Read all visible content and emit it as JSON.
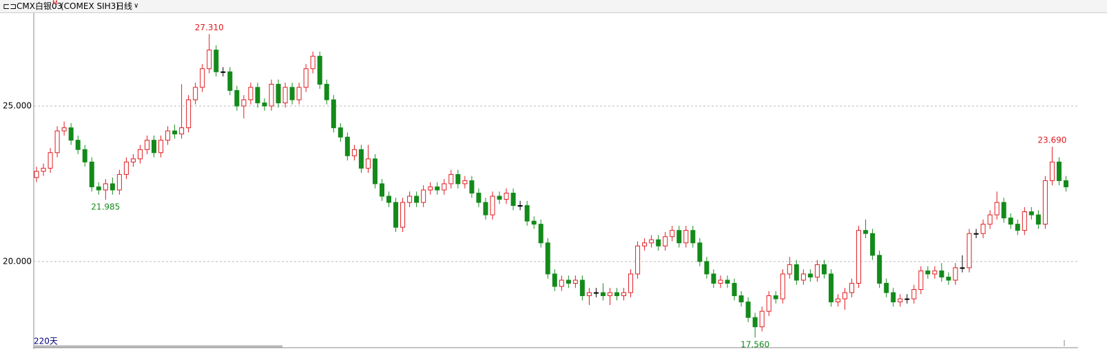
{
  "header": {
    "symbol": "CMX白银03",
    "badge": "M",
    "code": "(COMEX SIH3)",
    "period": "日线"
  },
  "chart_data": {
    "type": "candlestick",
    "window_label": "220天",
    "up_color": "#e0191e",
    "down_color": "#138a1a",
    "flat_color": "#000000",
    "ylim": [
      17.23,
      28.01
    ],
    "yticks": [
      {
        "value": 20,
        "label": "20.000"
      },
      {
        "value": 25,
        "label": "25.000"
      }
    ],
    "grid": true,
    "annotations": [
      {
        "text": "27.310",
        "value": 27.31
      },
      {
        "text": "21.985",
        "value": 21.985
      },
      {
        "text": "17.560",
        "value": 17.56
      },
      {
        "text": "23.690",
        "value": 23.69
      }
    ],
    "open": [
      22.7,
      22.9,
      23.0,
      23.5,
      24.2,
      24.3,
      23.9,
      23.6,
      23.2,
      22.4,
      22.3,
      22.5,
      22.3,
      22.8,
      23.2,
      23.3,
      23.6,
      23.9,
      23.5,
      23.9,
      24.2,
      24.1,
      24.3,
      25.2,
      25.6,
      26.2,
      26.8,
      26.1,
      26.1,
      25.5,
      25.0,
      25.2,
      25.6,
      25.1,
      25.0,
      25.7,
      25.1,
      25.6,
      25.2,
      25.6,
      26.2,
      26.6,
      25.7,
      25.2,
      24.3,
      24.0,
      23.4,
      23.6,
      23.0,
      23.3,
      22.5,
      22.1,
      21.9,
      21.1,
      21.9,
      22.1,
      21.9,
      22.3,
      22.4,
      22.3,
      22.5,
      22.8,
      22.5,
      22.6,
      22.2,
      21.9,
      21.5,
      22.1,
      22.0,
      22.2,
      21.8,
      21.8,
      21.3,
      21.2,
      20.6,
      19.6,
      19.2,
      19.4,
      19.3,
      19.4,
      18.9,
      19.0,
      19.0,
      18.9,
      19.0,
      18.9,
      19.0,
      19.6,
      20.5,
      20.6,
      20.7,
      20.5,
      20.8,
      21.0,
      20.6,
      21.0,
      20.6,
      20.0,
      19.6,
      19.3,
      19.4,
      19.3,
      18.9,
      18.7,
      18.2,
      17.9,
      18.4,
      18.9,
      18.8,
      19.6,
      19.9,
      19.4,
      19.6,
      19.5,
      19.9,
      19.6,
      18.7,
      18.8,
      19.0,
      19.3,
      21.0,
      20.9,
      20.2,
      19.3,
      19.0,
      18.7,
      18.8,
      18.8,
      19.1,
      19.7,
      19.6,
      19.7,
      19.5,
      19.4,
      19.8,
      19.8,
      20.9,
      20.9,
      21.2,
      21.5,
      21.9,
      21.4,
      21.2,
      21.0,
      21.6,
      21.5,
      21.2,
      22.6,
      23.2,
      22.6
    ],
    "high": [
      23.05,
      23.15,
      23.65,
      24.35,
      24.5,
      24.45,
      24.05,
      23.75,
      23.35,
      22.55,
      22.65,
      22.7,
      22.95,
      23.35,
      23.45,
      23.75,
      24.05,
      24.05,
      24.05,
      24.35,
      24.4,
      25.7,
      25.35,
      25.75,
      26.35,
      27.31,
      26.95,
      26.25,
      26.25,
      25.65,
      25.35,
      25.75,
      25.75,
      25.25,
      25.85,
      25.85,
      25.75,
      25.75,
      25.75,
      26.35,
      26.75,
      26.75,
      25.85,
      25.35,
      24.45,
      24.15,
      23.75,
      23.75,
      23.75,
      23.45,
      22.65,
      22.25,
      22.05,
      22.05,
      22.25,
      22.25,
      22.45,
      22.55,
      22.55,
      22.65,
      22.95,
      22.95,
      22.75,
      22.75,
      22.35,
      22.05,
      22.25,
      22.25,
      22.35,
      22.35,
      21.95,
      21.95,
      21.45,
      21.35,
      20.75,
      19.75,
      19.55,
      19.55,
      19.55,
      19.55,
      19.15,
      19.15,
      19.3,
      19.15,
      19.15,
      19.15,
      19.75,
      20.65,
      20.75,
      20.85,
      20.85,
      20.95,
      21.15,
      21.15,
      21.15,
      21.15,
      20.75,
      20.15,
      19.75,
      19.55,
      19.55,
      19.45,
      19.05,
      18.85,
      18.35,
      18.55,
      19.05,
      19.05,
      19.75,
      20.15,
      20.05,
      19.75,
      19.75,
      20.05,
      20.05,
      19.75,
      18.95,
      19.15,
      19.45,
      21.15,
      21.35,
      21.05,
      20.35,
      19.45,
      19.15,
      18.95,
      18.95,
      19.25,
      19.85,
      19.85,
      19.85,
      19.95,
      19.65,
      19.95,
      20.2,
      21.05,
      21.05,
      21.35,
      21.65,
      22.25,
      22.05,
      21.55,
      21.35,
      21.75,
      21.75,
      21.65,
      22.75,
      23.69,
      23.35,
      22.75
    ],
    "low": [
      22.55,
      22.75,
      22.85,
      23.35,
      24.05,
      23.75,
      23.45,
      23.05,
      22.25,
      22.15,
      21.985,
      22.15,
      22.15,
      22.65,
      23.05,
      23.15,
      23.45,
      23.35,
      23.35,
      23.75,
      23.95,
      23.95,
      24.15,
      25.05,
      25.45,
      26.05,
      25.95,
      25.95,
      25.35,
      24.85,
      24.6,
      25.05,
      24.95,
      24.85,
      24.85,
      24.95,
      24.95,
      25.05,
      25.05,
      25.45,
      26.05,
      25.55,
      25.05,
      24.15,
      23.85,
      23.25,
      23.25,
      22.85,
      22.85,
      22.35,
      21.95,
      21.75,
      20.95,
      20.95,
      21.75,
      21.75,
      21.75,
      22.15,
      22.15,
      22.15,
      22.35,
      22.35,
      22.35,
      22.05,
      21.75,
      21.35,
      21.35,
      21.85,
      21.85,
      21.65,
      21.65,
      21.15,
      21.05,
      20.45,
      19.45,
      19.05,
      19.05,
      19.15,
      19.15,
      18.75,
      18.6,
      18.85,
      18.75,
      18.6,
      18.75,
      18.75,
      18.85,
      19.45,
      20.35,
      20.45,
      20.35,
      20.35,
      20.65,
      20.45,
      20.45,
      20.45,
      19.85,
      19.45,
      19.15,
      19.15,
      19.15,
      18.75,
      18.55,
      18.05,
      17.56,
      17.75,
      18.25,
      18.65,
      18.65,
      19.45,
      19.25,
      19.25,
      19.35,
      19.35,
      19.45,
      18.55,
      18.55,
      18.45,
      18.85,
      19.15,
      20.75,
      20.05,
      19.15,
      18.85,
      18.55,
      18.55,
      18.65,
      18.65,
      18.95,
      19.45,
      19.45,
      19.35,
      19.25,
      19.25,
      19.65,
      19.65,
      20.75,
      20.75,
      21.05,
      21.35,
      21.25,
      21.05,
      20.85,
      20.85,
      21.35,
      21.05,
      21.05,
      22.45,
      22.45,
      22.25
    ],
    "close": [
      22.9,
      23.0,
      23.5,
      24.2,
      24.3,
      23.9,
      23.6,
      23.2,
      22.4,
      22.3,
      22.5,
      22.3,
      22.8,
      23.2,
      23.3,
      23.6,
      23.9,
      23.5,
      23.9,
      24.2,
      24.1,
      24.3,
      25.2,
      25.6,
      26.2,
      26.8,
      26.1,
      26.1,
      25.5,
      25.0,
      25.2,
      25.6,
      25.1,
      25.0,
      25.7,
      25.1,
      25.6,
      25.2,
      25.6,
      26.2,
      26.6,
      25.7,
      25.2,
      24.3,
      24.0,
      23.4,
      23.6,
      23.0,
      23.3,
      22.5,
      22.1,
      21.9,
      21.1,
      21.9,
      22.1,
      21.9,
      22.3,
      22.4,
      22.3,
      22.5,
      22.8,
      22.5,
      22.6,
      22.2,
      21.9,
      21.5,
      22.1,
      22.0,
      22.2,
      21.8,
      21.8,
      21.3,
      21.2,
      20.6,
      19.6,
      19.2,
      19.4,
      19.3,
      19.4,
      18.9,
      19.0,
      19.0,
      18.9,
      19.0,
      18.9,
      19.0,
      19.6,
      20.5,
      20.6,
      20.7,
      20.5,
      20.8,
      21.0,
      20.6,
      21.0,
      20.6,
      20.0,
      19.6,
      19.3,
      19.4,
      19.3,
      18.9,
      18.7,
      18.2,
      17.9,
      18.4,
      18.9,
      18.8,
      19.6,
      19.9,
      19.4,
      19.6,
      19.5,
      19.9,
      19.6,
      18.7,
      18.8,
      19.0,
      19.3,
      21.0,
      20.9,
      20.2,
      19.3,
      19.0,
      18.7,
      18.8,
      18.8,
      19.1,
      19.7,
      19.6,
      19.7,
      19.5,
      19.4,
      19.8,
      19.8,
      20.9,
      20.9,
      21.2,
      21.5,
      21.9,
      21.4,
      21.2,
      21.0,
      21.6,
      21.5,
      21.2,
      22.6,
      23.2,
      22.6,
      22.4
    ]
  }
}
